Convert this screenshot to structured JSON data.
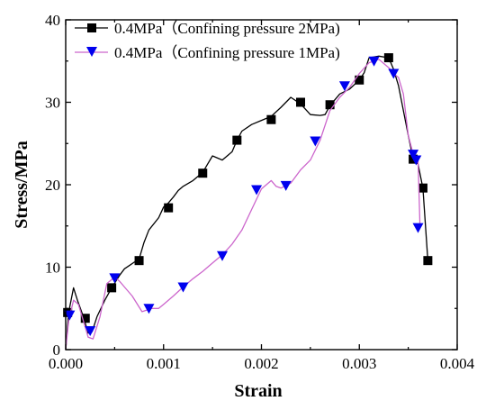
{
  "chart_data": {
    "type": "line",
    "title": "",
    "xlabel": "Strain",
    "ylabel": "Stress/MPa",
    "xlim": [
      0.0,
      0.004
    ],
    "ylim": [
      0,
      40
    ],
    "xticks": [
      "0.000",
      "0.001",
      "0.002",
      "0.003",
      "0.004"
    ],
    "yticks": [
      "0",
      "10",
      "20",
      "30",
      "40"
    ],
    "grid": false,
    "legend_position": "top-left",
    "series": [
      {
        "name": "0.4MPa（Confining pressure 2MPa)",
        "color": "#000000",
        "marker": "square",
        "x": [
          0,
          3e-05,
          8e-05,
          0.00012,
          0.00018,
          0.00023,
          0.00027,
          0.00032,
          0.0004,
          0.00047,
          0.00055,
          0.0006,
          0.00065,
          0.0007,
          0.00075,
          0.0008,
          0.00085,
          0.00095,
          0.001,
          0.00105,
          0.0011,
          0.00115,
          0.0012,
          0.0013,
          0.0014,
          0.00145,
          0.0015,
          0.0016,
          0.0017,
          0.00175,
          0.0018,
          0.0019,
          0.002,
          0.0021,
          0.0022,
          0.0023,
          0.0024,
          0.0025,
          0.0026,
          0.00265,
          0.0027,
          0.0028,
          0.0029,
          0.003,
          0.00305,
          0.0031,
          0.0032,
          0.0033,
          0.00335,
          0.0034,
          0.0035,
          0.00355,
          0.0036,
          0.00365,
          0.0037
        ],
        "y": [
          0,
          4.5,
          7.5,
          6,
          4,
          2,
          2.2,
          4,
          6,
          7.5,
          9,
          9.8,
          10.2,
          10.6,
          11,
          13,
          14.5,
          16,
          17.3,
          17.8,
          18.5,
          19.3,
          19.8,
          20.5,
          21.5,
          22.5,
          23.5,
          23,
          24,
          25.4,
          26.5,
          27.3,
          27.8,
          28.3,
          29.4,
          30.6,
          29.8,
          28.5,
          28.4,
          28.5,
          29.6,
          31,
          31.6,
          32.7,
          33.6,
          35.4,
          35.6,
          35.4,
          34,
          32,
          26,
          23.1,
          22.5,
          19.6,
          10.8
        ],
        "markers_x": [
          2e-05,
          0.0002,
          0.00047,
          0.00075,
          0.00105,
          0.0014,
          0.00175,
          0.0021,
          0.0024,
          0.0027,
          0.003,
          0.0033,
          0.00355,
          0.00365,
          0.0037
        ],
        "markers_y": [
          4.5,
          3.8,
          7.5,
          10.8,
          17.2,
          21.4,
          25.4,
          27.9,
          30,
          29.7,
          32.7,
          35.4,
          23.1,
          19.6,
          10.8
        ]
      },
      {
        "name": "0.4MPa（Confining pressure 1MPa)",
        "color": "#cc66cc",
        "marker": "triangle-down",
        "marker_color": "#0000ee",
        "x": [
          0,
          3e-05,
          8e-05,
          0.00013,
          0.00018,
          0.00023,
          0.00028,
          0.00035,
          0.00042,
          0.0005,
          0.00055,
          0.0006,
          0.00068,
          0.00078,
          0.00088,
          0.00095,
          0.001,
          0.00105,
          0.0011,
          0.0012,
          0.0013,
          0.0014,
          0.0015,
          0.0016,
          0.0017,
          0.0018,
          0.0019,
          0.002,
          0.0021,
          0.00215,
          0.0022,
          0.0023,
          0.0024,
          0.0025,
          0.0026,
          0.0027,
          0.0028,
          0.0029,
          0.003,
          0.0031,
          0.0032,
          0.0033,
          0.00335,
          0.0034,
          0.00345,
          0.0035,
          0.00355,
          0.0036,
          0.00362
        ],
        "y": [
          0,
          3.5,
          6,
          5.5,
          3.5,
          1.5,
          1.3,
          4,
          8,
          8.8,
          8.3,
          7.6,
          6.5,
          4.6,
          5,
          5,
          5.5,
          6,
          6.5,
          7.6,
          8.6,
          9.5,
          10.5,
          11.5,
          12.8,
          14.5,
          17,
          19.5,
          20.5,
          19.8,
          19.6,
          20.2,
          21.8,
          23,
          25.4,
          29,
          30.6,
          31.8,
          33.5,
          34.8,
          35.2,
          34.2,
          33.5,
          33,
          31,
          26,
          23.7,
          23,
          14.8
        ],
        "markers_x": [
          4e-05,
          0.00025,
          0.0005,
          0.00085,
          0.0012,
          0.0016,
          0.00195,
          0.00225,
          0.00255,
          0.00285,
          0.00315,
          0.00335,
          0.00355,
          0.00358,
          0.0036
        ],
        "markers_y": [
          4.2,
          2.3,
          8.7,
          5,
          7.6,
          11.4,
          19.4,
          19.9,
          25.3,
          32,
          35,
          33.5,
          23.7,
          23,
          14.8
        ]
      }
    ]
  }
}
